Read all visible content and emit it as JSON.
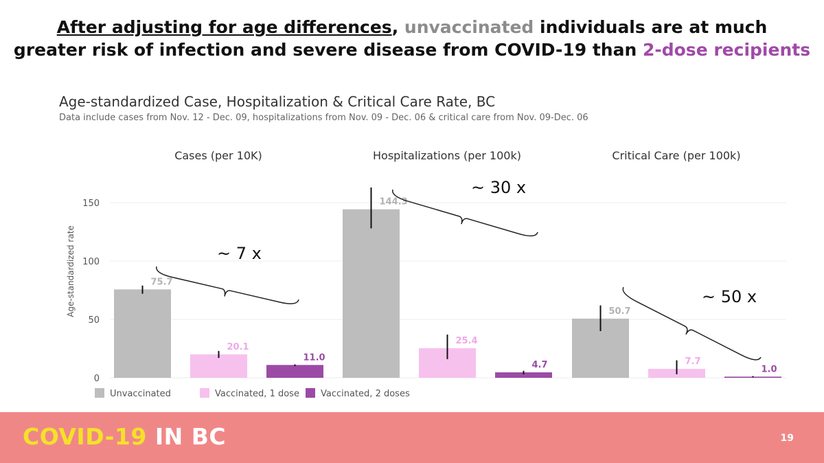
{
  "headline": {
    "part1": "After adjusting for age differences",
    "part2": ", ",
    "part3": "unvaccinated",
    "part4": " individuals are at much",
    "line2a": "greater risk of infection and severe disease from COVID-19 than ",
    "line2b": "2-dose recipients"
  },
  "chart_data": {
    "type": "bar",
    "title": "Age-standardized Case, Hospitalization & Critical Care Rate, BC",
    "subtitle": "Data include cases from Nov. 12 - Dec. 09, hospitalizations from Nov. 09 - Dec. 06 & critical care from Nov. 09-Dec. 06",
    "ylabel": "Age-standardized rate",
    "ylim": [
      0,
      160
    ],
    "yticks": [
      0,
      50,
      100,
      150
    ],
    "grid": true,
    "panels": [
      {
        "title": "Cases (per 10K)",
        "values": [
          75.7,
          20.1,
          11.0
        ],
        "labels": [
          "75.7",
          "20.1",
          "11.0"
        ],
        "error": [
          [
            72,
            79
          ],
          [
            17,
            23
          ],
          [
            10,
            11.5
          ]
        ],
        "annotation": "~ 7 x"
      },
      {
        "title": "Hospitalizations (per 100k)",
        "values": [
          144.3,
          25.4,
          4.7
        ],
        "labels": [
          "144.3",
          "25.4",
          "4.7"
        ],
        "error": [
          [
            128,
            163
          ],
          [
            16,
            37
          ],
          [
            3,
            6
          ]
        ],
        "annotation": "~ 30 x"
      },
      {
        "title": "Critical Care (per 100k)",
        "values": [
          50.7,
          7.7,
          1.0
        ],
        "labels": [
          "50.7",
          "7.7",
          "1.0"
        ],
        "error": [
          [
            40,
            62
          ],
          [
            3,
            15
          ],
          [
            0.5,
            1.5
          ]
        ],
        "annotation": "~ 50 x"
      }
    ],
    "series": [
      {
        "name": "Unvaccinated",
        "color": "#bdbdbd",
        "label_color": "#b3b3b3"
      },
      {
        "name": "Vaccinated, 1 dose",
        "color": "#f7c1ee",
        "label_color": "#f0a8e8"
      },
      {
        "name": "Vaccinated, 2 doses",
        "color": "#9b4ba5",
        "label_color": "#9b4ba5"
      }
    ]
  },
  "footer": {
    "brand1": "COVID-19",
    "brand2": " IN BC",
    "page": "19"
  }
}
